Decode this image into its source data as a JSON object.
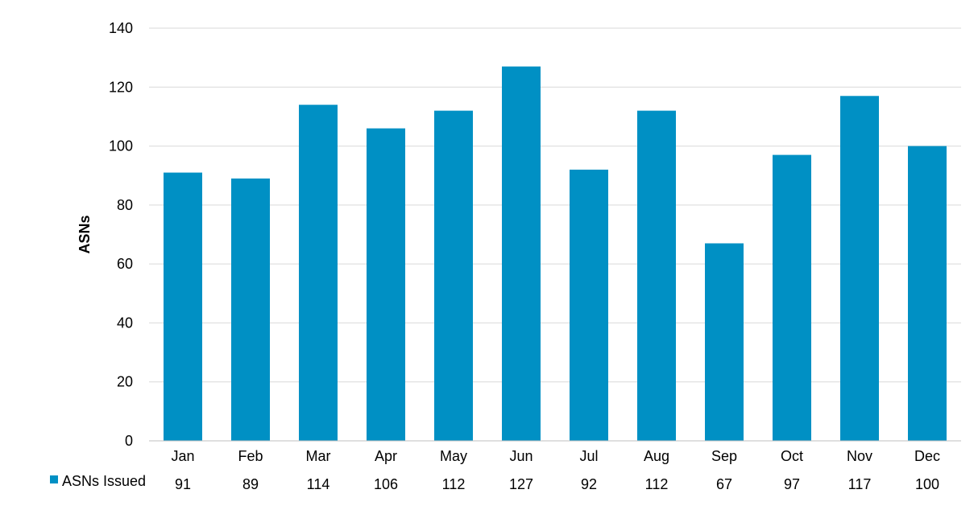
{
  "chart_data": {
    "type": "bar",
    "title": "",
    "xlabel": "",
    "ylabel": "ASNs",
    "ylim": [
      0,
      140
    ],
    "yticks": [
      0,
      20,
      40,
      60,
      80,
      100,
      120,
      140
    ],
    "grid": true,
    "legend_position": "bottom-left",
    "categories": [
      "Jan",
      "Feb",
      "Mar",
      "Apr",
      "May",
      "Jun",
      "Jul",
      "Aug",
      "Sep",
      "Oct",
      "Nov",
      "Dec"
    ],
    "series": [
      {
        "name": "ASNs Issued",
        "color": "#0090c4",
        "values": [
          91,
          89,
          114,
          106,
          112,
          127,
          92,
          112,
          67,
          97,
          117,
          100
        ]
      }
    ],
    "data_table": true
  }
}
